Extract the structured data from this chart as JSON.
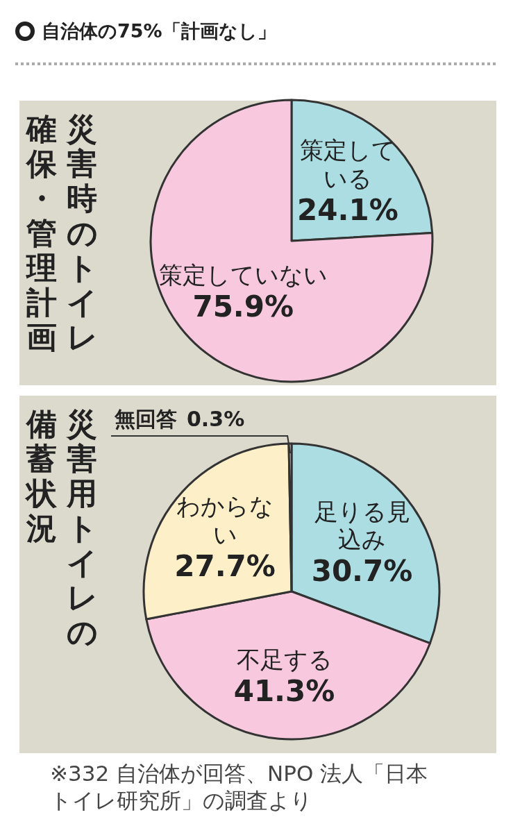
{
  "chart_data": [
    {
      "type": "pie",
      "title": "自治体の75%「計画なし」",
      "subtitle": "災害時のトイレ確保・管理計画",
      "categories": [
        "策定している",
        "策定していない"
      ],
      "values": [
        24.1,
        75.9
      ],
      "value_labels": [
        "24.1%",
        "75.9%"
      ],
      "data_labels": true,
      "colors": [
        "#abdde3",
        "#f8c8de"
      ]
    },
    {
      "type": "pie",
      "title": "災害用トイレの備蓄状況",
      "categories": [
        "足りる見込み",
        "不足する",
        "わからない",
        "無回答"
      ],
      "values": [
        30.7,
        41.3,
        27.7,
        0.3
      ],
      "value_labels": [
        "30.7%",
        "41.3%",
        "27.7%",
        "0.3%"
      ],
      "data_labels": true,
      "colors": [
        "#abdde3",
        "#f8c8de",
        "#fdf0c9",
        "#ffffff"
      ],
      "annotations": [
        "※332 自治体が回答、NPO 法人「日本トイレ研究所」の調査より"
      ]
    }
  ]
}
